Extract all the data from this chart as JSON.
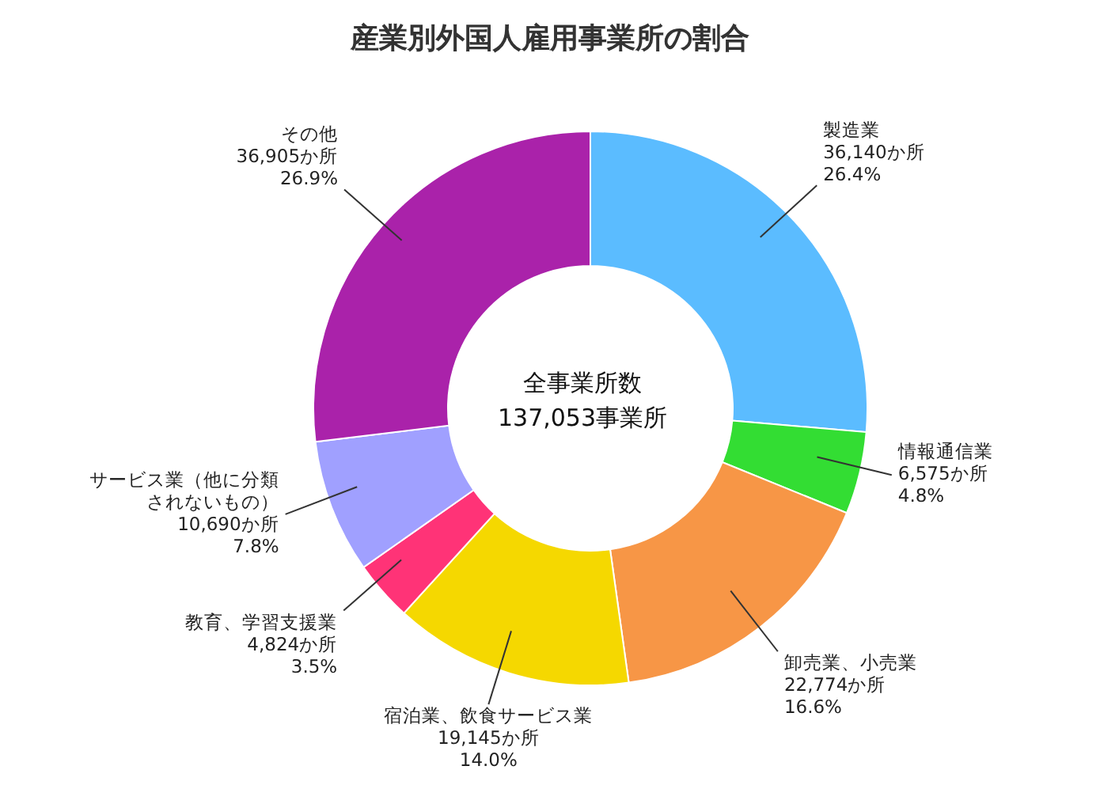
{
  "chart_data": {
    "type": "donut",
    "title": "産業別外国人雇用事業所の割合",
    "categories": [
      "製造業",
      "情報通信業",
      "卸売業、小売業",
      "宿泊業、飲食サービス業",
      "教育、学習支援業",
      "サービス業（他に分類されないもの）",
      "その他"
    ],
    "values": [
      36140,
      6575,
      22774,
      19145,
      4824,
      10690,
      36905
    ],
    "value_labels": [
      "36,140か所\n26.4%",
      "6,575か所\n4.8%",
      "22,774か所\n16.6%",
      "19,145か所\n14.0%",
      "4,824か所\n3.5%",
      "10,690か所\n7.8%",
      "36,905か所\n26.9%"
    ],
    "colors": [
      "#5bbcff",
      "#33dd33",
      "#f79646",
      "#f5d800",
      "#ff3377",
      "#a0a0ff",
      "#aa22aa"
    ],
    "annotations": [
      "全事業所数\n137,053事業所"
    ]
  }
}
